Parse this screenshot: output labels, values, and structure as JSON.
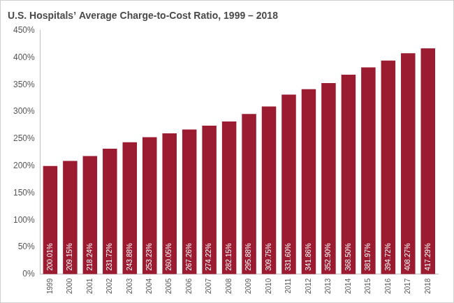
{
  "chart_data": {
    "type": "bar",
    "title": "U.S. Hospitals’ Average Charge-to-Cost Ratio, 1999 – 2018",
    "categories": [
      "1999",
      "2000",
      "2001",
      "2002",
      "2003",
      "2004",
      "2005",
      "2006",
      "2007",
      "2008",
      "2009",
      "2010",
      "2011",
      "2012",
      "2013",
      "2014",
      "2015",
      "2016",
      "2017",
      "2018"
    ],
    "values": [
      200.01,
      209.15,
      218.24,
      231.72,
      243.88,
      253.23,
      260.05,
      267.26,
      274.22,
      282.15,
      295.88,
      309.75,
      331.6,
      341.86,
      352.9,
      368.5,
      381.97,
      394.72,
      408.27,
      417.29
    ],
    "value_labels": [
      "200.01%",
      "209.15%",
      "218.24%",
      "231.72%",
      "243.88%",
      "253.23%",
      "260.05%",
      "267.26%",
      "274.22%",
      "282.15%",
      "295.88%",
      "309.75%",
      "331.60%",
      "341.86%",
      "352.90%",
      "368.50%",
      "381.97%",
      "394.72%",
      "408.27%",
      "417.29%"
    ],
    "data_labels": true,
    "color": "#9b1b30",
    "ylim": [
      0,
      450
    ],
    "yticks": [
      {
        "value": 0,
        "label": "0%"
      },
      {
        "value": 50,
        "label": "50%"
      },
      {
        "value": 100,
        "label": "100%"
      },
      {
        "value": 150,
        "label": "150%"
      },
      {
        "value": 200,
        "label": "200%"
      },
      {
        "value": 250,
        "label": "250%"
      },
      {
        "value": 300,
        "label": "300%"
      },
      {
        "value": 350,
        "label": "350%"
      },
      {
        "value": 400,
        "label": "400%"
      },
      {
        "value": 450,
        "label": "450%"
      }
    ],
    "grid": false
  }
}
